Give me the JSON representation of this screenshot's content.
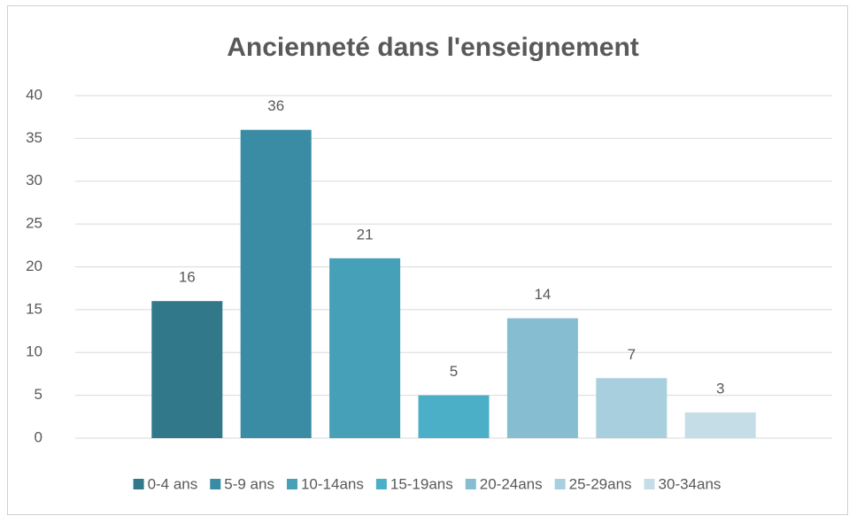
{
  "chart_data": {
    "type": "bar",
    "title": "Ancienneté dans l'enseignement",
    "series": [
      {
        "name": "0-4 ans",
        "color": "#31788a",
        "values": [
          16
        ]
      },
      {
        "name": "5-9 ans",
        "color": "#3a8ca4",
        "values": [
          36
        ]
      },
      {
        "name": "10-14ans",
        "color": "#46a0b8",
        "values": [
          21
        ]
      },
      {
        "name": "15-19ans",
        "color": "#4bafc8",
        "values": [
          5
        ]
      },
      {
        "name": "20-24ans",
        "color": "#86bdd1",
        "values": [
          14
        ]
      },
      {
        "name": "25-29ans",
        "color": "#a7cfdd",
        "values": [
          7
        ]
      },
      {
        "name": "30-34ans",
        "color": "#c5dde7",
        "values": [
          3
        ]
      }
    ],
    "ylim": [
      0,
      40
    ],
    "yticks": [
      0,
      5,
      10,
      15,
      20,
      25,
      30,
      35,
      40
    ],
    "grid": true,
    "legend": "bottom"
  }
}
